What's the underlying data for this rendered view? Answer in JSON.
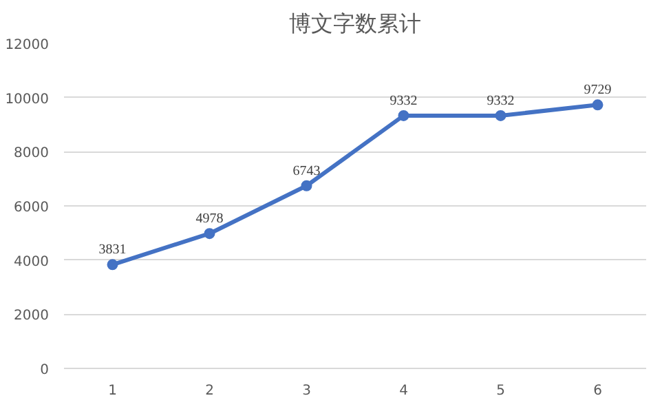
{
  "chart_data": {
    "type": "line",
    "title": "博文字数累计",
    "categories": [
      "1",
      "2",
      "3",
      "4",
      "5",
      "6"
    ],
    "values": [
      3831,
      4978,
      6743,
      9332,
      9332,
      9729
    ],
    "color": "#4472c4",
    "ylim": [
      0,
      12000
    ],
    "yticks": [
      0,
      2000,
      4000,
      6000,
      8000,
      10000,
      12000
    ],
    "grid": "y",
    "marker": "circle",
    "line_style": "solid",
    "data_labels": true
  }
}
